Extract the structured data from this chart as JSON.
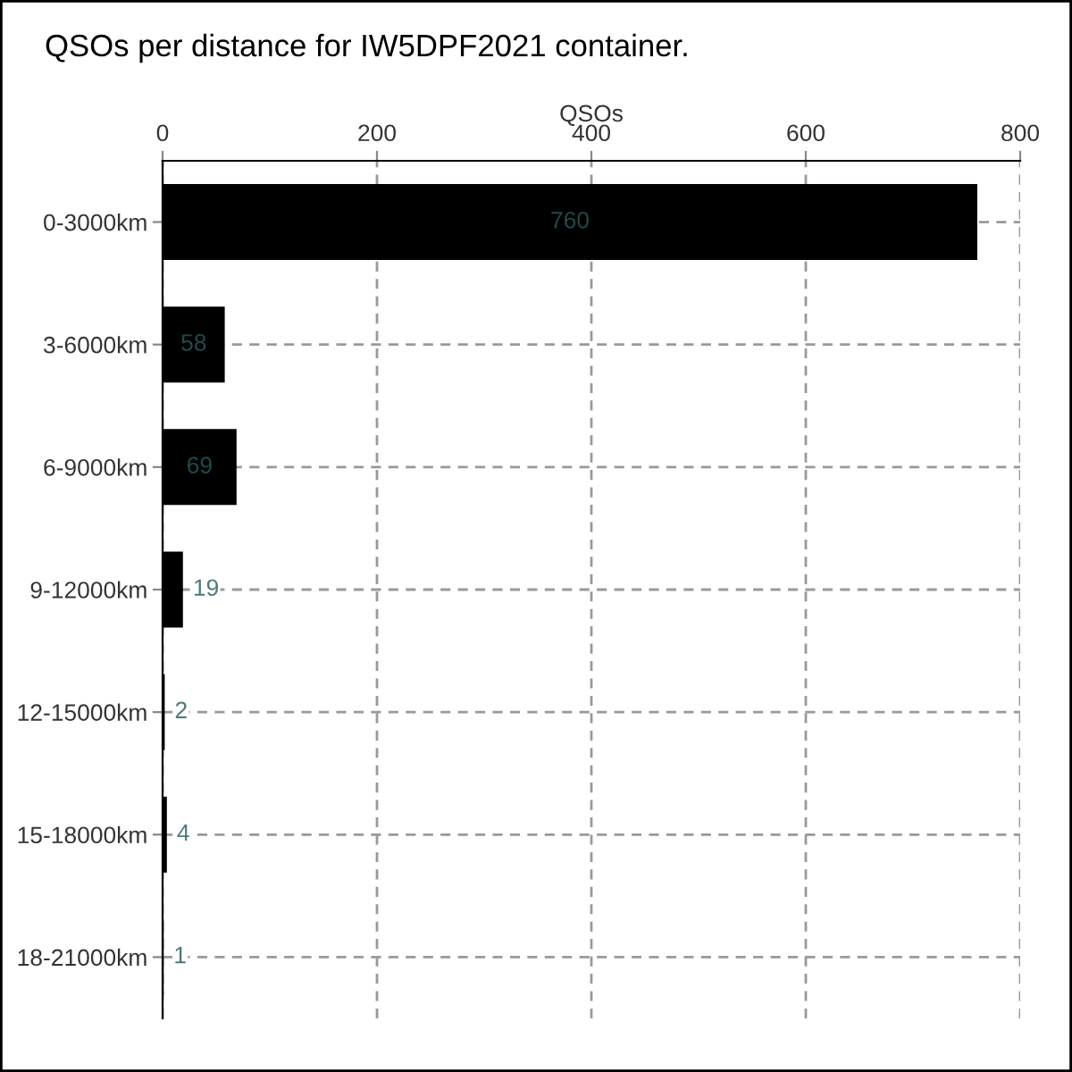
{
  "chart_data": {
    "type": "bar",
    "orientation": "horizontal",
    "title": "QSOs per distance for IW5DPF2021 container.",
    "xlabel": "QSOs",
    "categories": [
      "0-3000km",
      "3-6000km",
      "6-9000km",
      "9-12000km",
      "12-15000km",
      "15-18000km",
      "18-21000km"
    ],
    "values": [
      760,
      58,
      69,
      19,
      2,
      4,
      1
    ],
    "color": "#000000",
    "xlim": [
      0,
      800
    ],
    "xticks": [
      0,
      200,
      400,
      600,
      800
    ],
    "grid": true,
    "data_labels": true
  }
}
